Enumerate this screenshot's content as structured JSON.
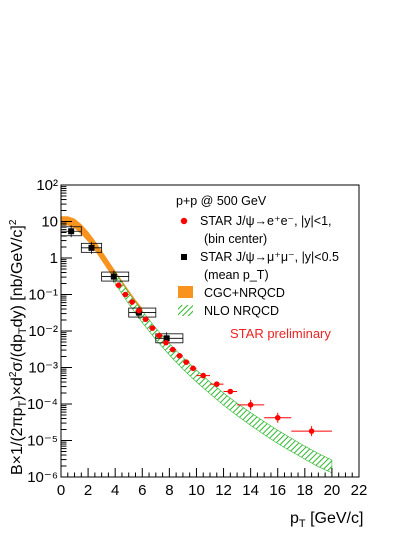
{
  "chart_data": {
    "type": "scatter",
    "x_axis": {
      "label": "p_T [GeV/c]",
      "range": [
        0,
        22
      ],
      "scale": "linear",
      "ticks": [
        "0",
        "2",
        "4",
        "6",
        "8",
        "10",
        "12",
        "14",
        "16",
        "18",
        "20",
        "22"
      ]
    },
    "y_axis": {
      "label": "B×1/(2πp_T)×d²σ/(dp_T dy)   [nb/GeV/c]²",
      "range": [
        1e-06,
        100
      ],
      "scale": "log",
      "ticks": [
        "10⁻⁶",
        "10⁻⁵",
        "10⁻⁴",
        "10⁻³",
        "10⁻²",
        "10⁻¹",
        "1",
        "10",
        "10²"
      ]
    },
    "legend": {
      "header": "p+p @ 500 GeV",
      "entries": [
        {
          "line1": "STAR  J/ψ→e⁺e⁻, |y|<1,",
          "line2": "(bin center)"
        },
        {
          "line1": "STAR  J/ψ→μ⁺μ⁻, |y|<0.5",
          "line2": "(mean p_T)"
        },
        {
          "line1": "CGC+NRQCD"
        },
        {
          "line1": "NLO NRQCD"
        }
      ],
      "placement": "top-right"
    },
    "annotation": "STAR preliminary",
    "series": [
      {
        "name": "STAR J/ψ→e⁺e⁻, |y|<1, (bin center)",
        "marker": "circle",
        "color": "#ff0000",
        "points": [
          {
            "x": 4.25,
            "y": 0.18,
            "xerr": 0.25
          },
          {
            "x": 4.75,
            "y": 0.1,
            "xerr": 0.25
          },
          {
            "x": 5.25,
            "y": 0.062,
            "xerr": 0.25
          },
          {
            "x": 5.75,
            "y": 0.036,
            "xerr": 0.25
          },
          {
            "x": 6.25,
            "y": 0.021,
            "xerr": 0.25
          },
          {
            "x": 6.75,
            "y": 0.012,
            "xerr": 0.25
          },
          {
            "x": 7.25,
            "y": 0.0075,
            "xerr": 0.25
          },
          {
            "x": 7.75,
            "y": 0.0048,
            "xerr": 0.25
          },
          {
            "x": 8.25,
            "y": 0.0031,
            "xerr": 0.25
          },
          {
            "x": 8.75,
            "y": 0.0021,
            "xerr": 0.25
          },
          {
            "x": 9.25,
            "y": 0.0014,
            "xerr": 0.25
          },
          {
            "x": 9.75,
            "y": 0.00095,
            "xerr": 0.25
          },
          {
            "x": 10.5,
            "y": 0.0006,
            "xerr": 0.5
          },
          {
            "x": 11.5,
            "y": 0.00035,
            "xerr": 0.5
          },
          {
            "x": 12.5,
            "y": 0.00022,
            "xerr": 0.5
          },
          {
            "x": 14.0,
            "y": 9.5e-05,
            "xerr": 1.0
          },
          {
            "x": 16.0,
            "y": 4.2e-05,
            "xerr": 1.0
          },
          {
            "x": 18.5,
            "y": 1.8e-05,
            "xerr": 1.5
          }
        ]
      },
      {
        "name": "STAR J/ψ→μ⁺μ⁻, |y|<0.5 (mean p_T)",
        "marker": "square",
        "color": "#000000",
        "points": [
          {
            "x": 0.75,
            "y": 5.4,
            "xlo": 0,
            "xhi": 1.5
          },
          {
            "x": 2.25,
            "y": 1.9,
            "xlo": 1.5,
            "xhi": 3.0
          },
          {
            "x": 3.9,
            "y": 0.31,
            "xlo": 3.0,
            "xhi": 5.0
          },
          {
            "x": 5.75,
            "y": 0.032,
            "xlo": 5.0,
            "xhi": 7.0
          },
          {
            "x": 7.8,
            "y": 0.0063,
            "xlo": 7.0,
            "xhi": 9.0
          }
        ]
      }
    ],
    "bands": [
      {
        "name": "CGC+NRQCD",
        "color": "#f7931e",
        "style": "solid",
        "x": [
          0.0,
          0.5,
          1.0,
          1.5,
          2.0,
          2.5,
          3.0,
          3.5,
          4.0,
          4.5,
          5.0,
          5.5,
          6.0
        ],
        "lo": [
          8.0,
          7.8,
          6.5,
          4.5,
          2.8,
          1.6,
          0.85,
          0.45,
          0.24,
          0.13,
          0.07,
          0.038,
          0.022
        ],
        "hi": [
          14.0,
          14.0,
          12.0,
          8.5,
          5.3,
          3.0,
          1.6,
          0.85,
          0.45,
          0.24,
          0.13,
          0.072,
          0.042
        ]
      },
      {
        "name": "NLO NRQCD",
        "color": "#22aa22",
        "style": "hatched",
        "x": [
          4.0,
          5.0,
          6.0,
          7.0,
          8.0,
          9.0,
          10.0,
          11.0,
          12.0,
          13.0,
          14.0,
          15.0,
          16.0,
          17.0,
          18.0,
          19.0,
          20.0
        ],
        "lo": [
          0.2,
          0.055,
          0.017,
          0.0058,
          0.0022,
          0.0009,
          0.0004,
          0.00019,
          9.3e-05,
          4.8e-05,
          2.6e-05,
          1.45e-05,
          8.3e-06,
          5e-06,
          3.1e-06,
          1.9e-06,
          1.3e-06
        ],
        "hi": [
          0.4,
          0.11,
          0.035,
          0.012,
          0.0045,
          0.0019,
          0.00085,
          0.0004,
          0.0002,
          0.000105,
          5.8e-05,
          3.3e-05,
          1.9e-05,
          1.15e-05,
          7e-06,
          4.4e-06,
          2.9e-06
        ]
      }
    ]
  }
}
